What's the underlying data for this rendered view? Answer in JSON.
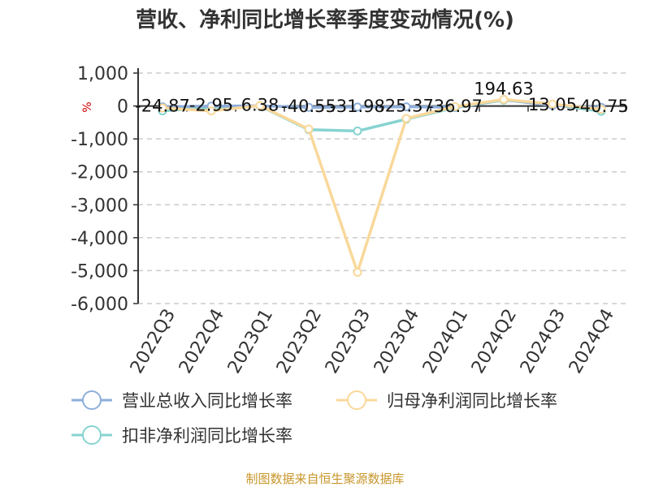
{
  "chart_data": {
    "type": "line",
    "title": "营收、净利同比增长率季度变动情况(%)",
    "unit_label": "%",
    "categories": [
      "2022Q3",
      "2022Q4",
      "2023Q1",
      "2023Q2",
      "2023Q3",
      "2023Q4",
      "2024Q1",
      "2024Q2",
      "2024Q3",
      "2024Q4"
    ],
    "yticks": [
      "1,000",
      "0",
      "-1,000",
      "-2,000",
      "-3,000",
      "-4,000",
      "-5,000",
      "-6,000"
    ],
    "ylim": [
      -6000,
      1000
    ],
    "grid": true,
    "legend_position": "bottom",
    "series": [
      {
        "name": "营业总收入同比增长率",
        "color": "#8eaedb",
        "values": [
          -24.87,
          -2.95,
          6.38,
          -40.55,
          -31.98,
          -25.37,
          -36.97,
          194.63,
          13.05,
          -40.75
        ],
        "labels": [
          "-24.87",
          "-2.95",
          "6.38",
          "-40.55",
          "-31.98",
          "-25.37",
          "-36.97",
          "194.63",
          "13.05",
          "-40.75"
        ]
      },
      {
        "name": "归母净利润同比增长率",
        "color": "#f9d89a",
        "values": [
          -60,
          -150,
          10,
          -700,
          -5050,
          -380,
          -20,
          200,
          60,
          -100
        ]
      },
      {
        "name": "扣非净利润同比增长率",
        "color": "#86d3d1",
        "values": [
          -150,
          -40,
          0,
          -720,
          -760,
          -400,
          -50,
          180,
          40,
          -160
        ]
      }
    ]
  },
  "source": "制图数据来自恒生聚源数据库"
}
